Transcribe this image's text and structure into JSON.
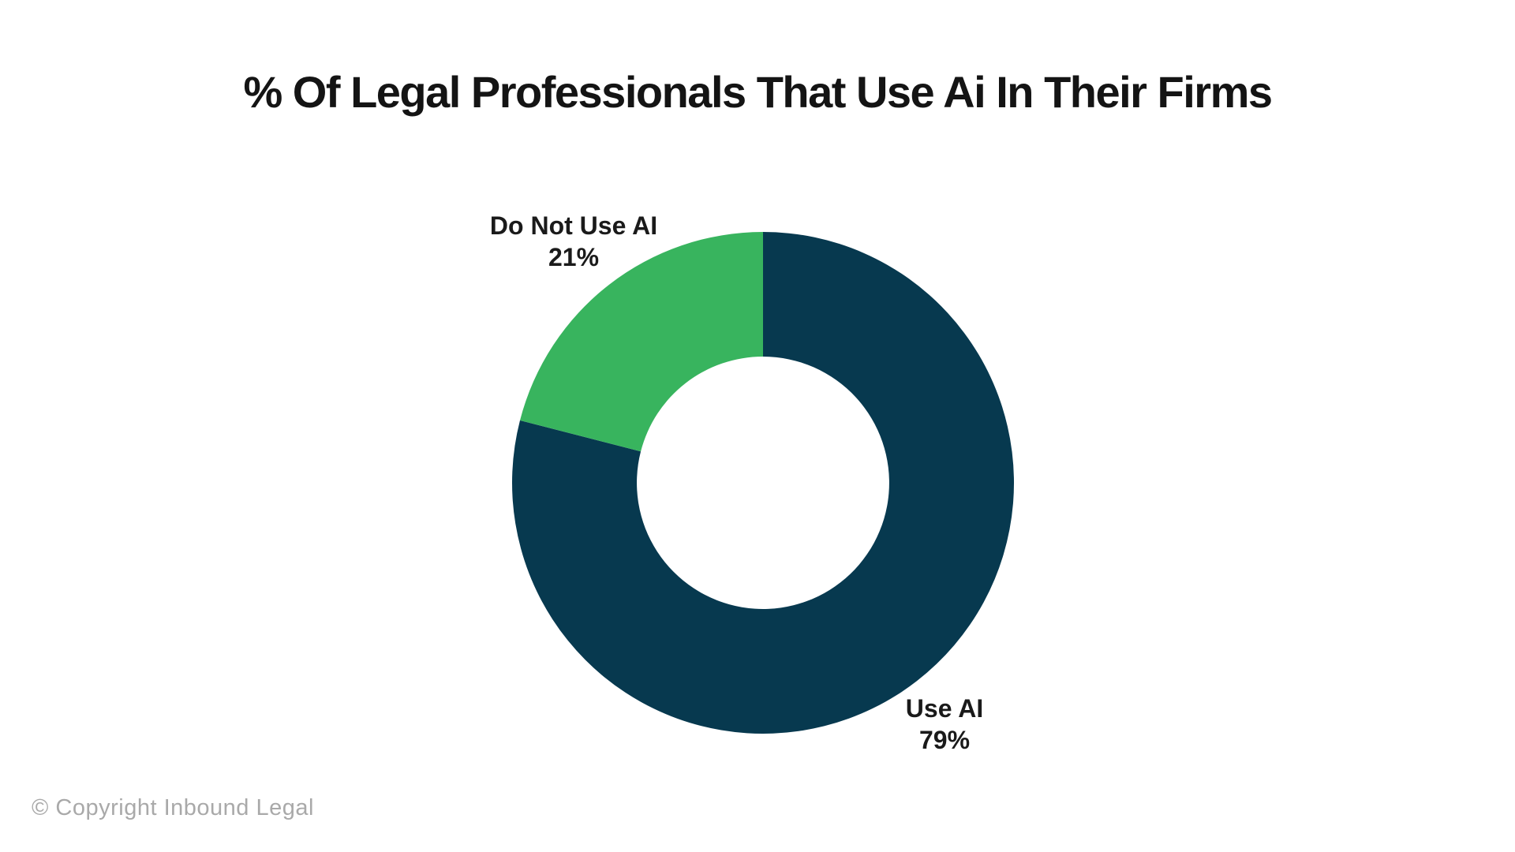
{
  "page": {
    "background_color": "#ffffff",
    "title_color": "#141414",
    "label_color": "#1a1a1a",
    "copyright_color": "#a9a9a9"
  },
  "footer": {
    "copyright": "© Copyright Inbound Legal"
  },
  "chart_data": {
    "type": "pie",
    "subtype": "donut",
    "title": "% Of Legal Professionals That Use Ai In Their Firms",
    "start_angle_deg": 0,
    "direction": "clockwise",
    "inner_radius_ratio": 0.503,
    "legend_position": "outside-data-labels",
    "slices": [
      {
        "label": "Use AI",
        "value": 79,
        "display": "79%",
        "color": "#07394f"
      },
      {
        "label": "Do Not Use AI",
        "value": 21,
        "display": "21%",
        "color": "#38b45e"
      }
    ]
  }
}
